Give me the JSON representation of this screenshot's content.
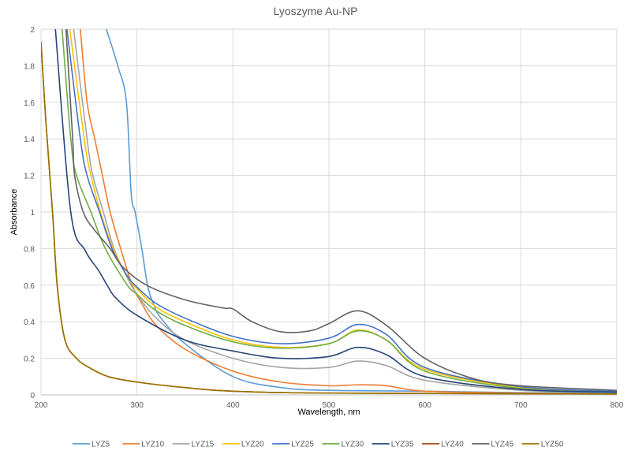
{
  "chart_data": {
    "type": "line",
    "title": "Lyoszyme Au-NP",
    "xlabel": "Wavelength, nm",
    "ylabel": "Absorbance",
    "xlim": [
      200,
      800
    ],
    "ylim": [
      0,
      2
    ],
    "xticks": [
      200,
      300,
      400,
      500,
      600,
      700,
      800
    ],
    "yticks": [
      0,
      0.2,
      0.4,
      0.6,
      0.8,
      1,
      1.2,
      1.4,
      1.6,
      1.8,
      2
    ],
    "grid": true,
    "legend": "bottom",
    "series": [
      {
        "name": "LYZ5",
        "color": "#5B9BD5",
        "x": [
          268,
          280,
          289,
          294,
          298,
          305,
          311,
          317,
          325,
          350,
          400,
          450,
          500,
          600,
          700,
          800
        ],
        "y": [
          2,
          1.8,
          1.6,
          1.1,
          1.0,
          0.8,
          0.6,
          0.5,
          0.42,
          0.28,
          0.1,
          0.04,
          0.025,
          0.02,
          0.012,
          0.01
        ]
      },
      {
        "name": "LYZ10",
        "color": "#ED7D31",
        "x": [
          241,
          248,
          256,
          264,
          272,
          283,
          295,
          305,
          320,
          350,
          400,
          450,
          500,
          530,
          560,
          600,
          700,
          800
        ],
        "y": [
          2,
          1.6,
          1.4,
          1.2,
          1.0,
          0.8,
          0.6,
          0.5,
          0.38,
          0.25,
          0.13,
          0.07,
          0.05,
          0.055,
          0.05,
          0.02,
          0.01,
          0.005
        ]
      },
      {
        "name": "LYZ15",
        "color": "#A5A5A5",
        "x": [
          234,
          248,
          254,
          265,
          276,
          290,
          300,
          320,
          350,
          400,
          450,
          500,
          530,
          560,
          600,
          700,
          800
        ],
        "y": [
          2,
          1.4,
          1.2,
          1.0,
          0.8,
          0.64,
          0.55,
          0.42,
          0.3,
          0.2,
          0.15,
          0.15,
          0.185,
          0.16,
          0.08,
          0.025,
          0.015
        ]
      },
      {
        "name": "LYZ20",
        "color": "#FFC000",
        "x": [
          230,
          245,
          252,
          262,
          275,
          290,
          300,
          320,
          350,
          400,
          450,
          500,
          530,
          560,
          600,
          700,
          800
        ],
        "y": [
          2,
          1.4,
          1.2,
          1.0,
          0.8,
          0.65,
          0.58,
          0.48,
          0.4,
          0.3,
          0.26,
          0.28,
          0.355,
          0.3,
          0.14,
          0.04,
          0.02
        ]
      },
      {
        "name": "LYZ25",
        "color": "#4472C4",
        "x": [
          227,
          241,
          248,
          261,
          274,
          290,
          300,
          320,
          350,
          400,
          450,
          500,
          530,
          560,
          600,
          700,
          800
        ],
        "y": [
          2,
          1.4,
          1.2,
          1.0,
          0.8,
          0.65,
          0.59,
          0.5,
          0.42,
          0.32,
          0.28,
          0.31,
          0.385,
          0.33,
          0.15,
          0.045,
          0.02
        ]
      },
      {
        "name": "LYZ30",
        "color": "#70AD47",
        "x": [
          222,
          231,
          237,
          252,
          267,
          290,
          300,
          320,
          350,
          400,
          450,
          500,
          530,
          560,
          600,
          700,
          800
        ],
        "y": [
          2,
          1.4,
          1.2,
          1.0,
          0.8,
          0.6,
          0.55,
          0.46,
          0.38,
          0.29,
          0.255,
          0.28,
          0.35,
          0.3,
          0.13,
          0.035,
          0.015
        ]
      },
      {
        "name": "LYZ35",
        "color": "#264478",
        "x": [
          215,
          231,
          246,
          260,
          270,
          278,
          300,
          350,
          400,
          450,
          500,
          530,
          560,
          600,
          700,
          800
        ],
        "y": [
          2,
          1.0,
          0.79,
          0.68,
          0.59,
          0.53,
          0.435,
          0.3,
          0.24,
          0.2,
          0.21,
          0.26,
          0.22,
          0.1,
          0.03,
          0.015
        ]
      },
      {
        "name": "LYZ40",
        "color": "#9E480E",
        "x": [
          200,
          205,
          212,
          217,
          225,
          237,
          250,
          270,
          300,
          350,
          400,
          500,
          800
        ],
        "y": [
          1.93,
          1.5,
          1.0,
          0.59,
          0.3,
          0.2,
          0.15,
          0.1,
          0.07,
          0.04,
          0.02,
          0.01,
          0.005
        ]
      },
      {
        "name": "LYZ45",
        "color": "#636363",
        "x": [
          226,
          233,
          235,
          244,
          256,
          272,
          285,
          310,
          350,
          390,
          400,
          420,
          450,
          480,
          500,
          530,
          560,
          600,
          650,
          700,
          800
        ],
        "y": [
          2,
          1.4,
          1.2,
          1.0,
          0.9,
          0.8,
          0.7,
          0.6,
          0.52,
          0.475,
          0.47,
          0.4,
          0.345,
          0.35,
          0.39,
          0.46,
          0.38,
          0.2,
          0.09,
          0.05,
          0.025
        ]
      },
      {
        "name": "LYZ50",
        "color": "#997300",
        "x": [
          200,
          205,
          212,
          217,
          225,
          237,
          250,
          270,
          300,
          350,
          400,
          500,
          800
        ],
        "y": [
          1.93,
          1.5,
          1.0,
          0.59,
          0.3,
          0.2,
          0.15,
          0.1,
          0.07,
          0.04,
          0.02,
          0.01,
          0.005
        ]
      }
    ]
  }
}
